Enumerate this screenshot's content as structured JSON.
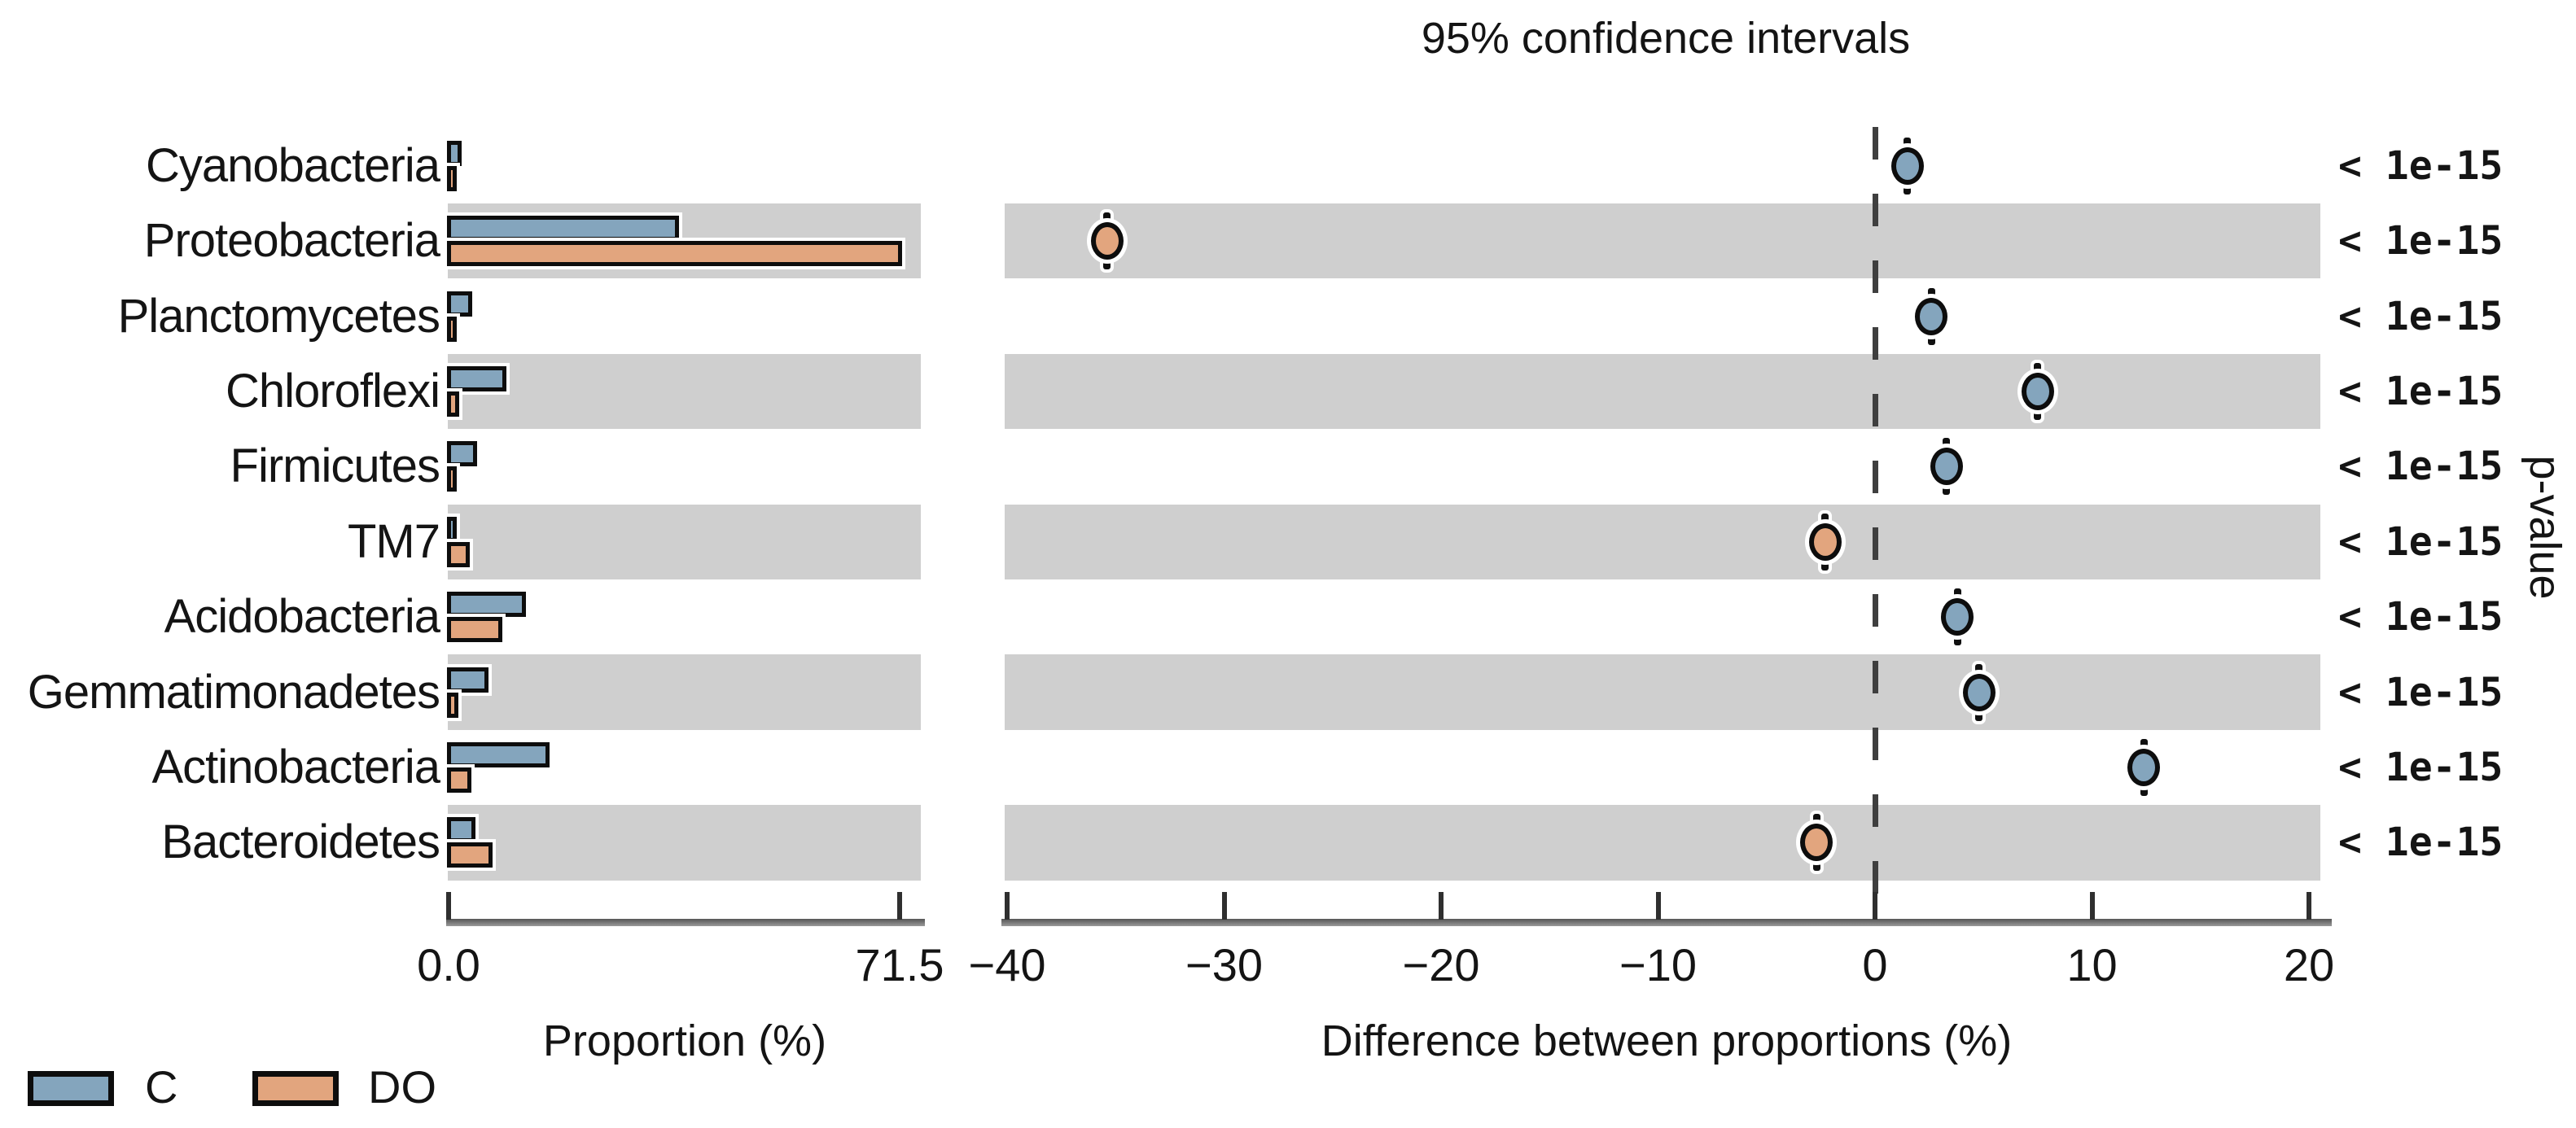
{
  "title": "95% confidence intervals",
  "colors": {
    "c_blue": "#84a5bd",
    "do_orange": "#e2a57e",
    "band_gray": "#cfcfcf",
    "bar_outline": "#0d0d0d",
    "dash_gray": "#3f3f3f",
    "axis_gray": "#7d7d7d",
    "text": "#141414"
  },
  "legend": {
    "items": [
      {
        "label": "C",
        "color_key": "c_blue"
      },
      {
        "label": "DO",
        "color_key": "do_orange"
      }
    ]
  },
  "left_axis": {
    "title": "Proportion (%)",
    "tick_labels": [
      "0.0",
      "71.5"
    ],
    "tick_values": [
      0,
      71.5
    ]
  },
  "right_axis": {
    "title": "Difference between proportions (%)",
    "tick_labels": [
      "−40",
      "−30",
      "−20",
      "−10",
      "0",
      "10",
      "20"
    ],
    "tick_values": [
      -40,
      -30,
      -20,
      -10,
      0,
      10,
      20
    ]
  },
  "pvalue_column": {
    "axis_label": "p-value"
  },
  "chart_data": {
    "type": "bar",
    "title": "95% confidence intervals",
    "categories": [
      "Cyanobacteria",
      "Proteobacteria",
      "Planctomycetes",
      "Chloroflexi",
      "Firmicutes",
      "TM7",
      "Acidobacteria",
      "Gemmatimonadetes",
      "Actinobacteria",
      "Bacteroidetes"
    ],
    "series": [
      {
        "name": "C",
        "values": [
          1.7,
          36.1,
          3.4,
          8.8,
          4.1,
          0.7,
          11.9,
          6.0,
          15.6,
          3.9
        ]
      },
      {
        "name": "DO",
        "values": [
          0.2,
          71.5,
          0.8,
          1.3,
          0.8,
          3.0,
          8.1,
          1.2,
          3.2,
          6.6
        ]
      }
    ],
    "proportion_axis": {
      "label": "Proportion (%)",
      "xlim": [
        0,
        71.5
      ]
    },
    "difference_series": {
      "label": "Difference between proportions (%)",
      "values": [
        1.5,
        -35.4,
        2.6,
        7.5,
        3.3,
        -2.3,
        3.8,
        4.8,
        12.4,
        -2.7
      ],
      "xlim": [
        -40,
        20
      ],
      "note": "dot colored by dominant group: positive = C (blue), negative = DO (orange)"
    },
    "p_values": [
      "< 1e-15",
      "< 1e-15",
      "< 1e-15",
      "< 1e-15",
      "< 1e-15",
      "< 1e-15",
      "< 1e-15",
      "< 1e-15",
      "< 1e-15",
      "< 1e-15"
    ],
    "shaded_rows": [
      1,
      3,
      5,
      7,
      9
    ],
    "ylabel_right": "p-value",
    "legend_position": "bottom-left",
    "grid": "off"
  }
}
